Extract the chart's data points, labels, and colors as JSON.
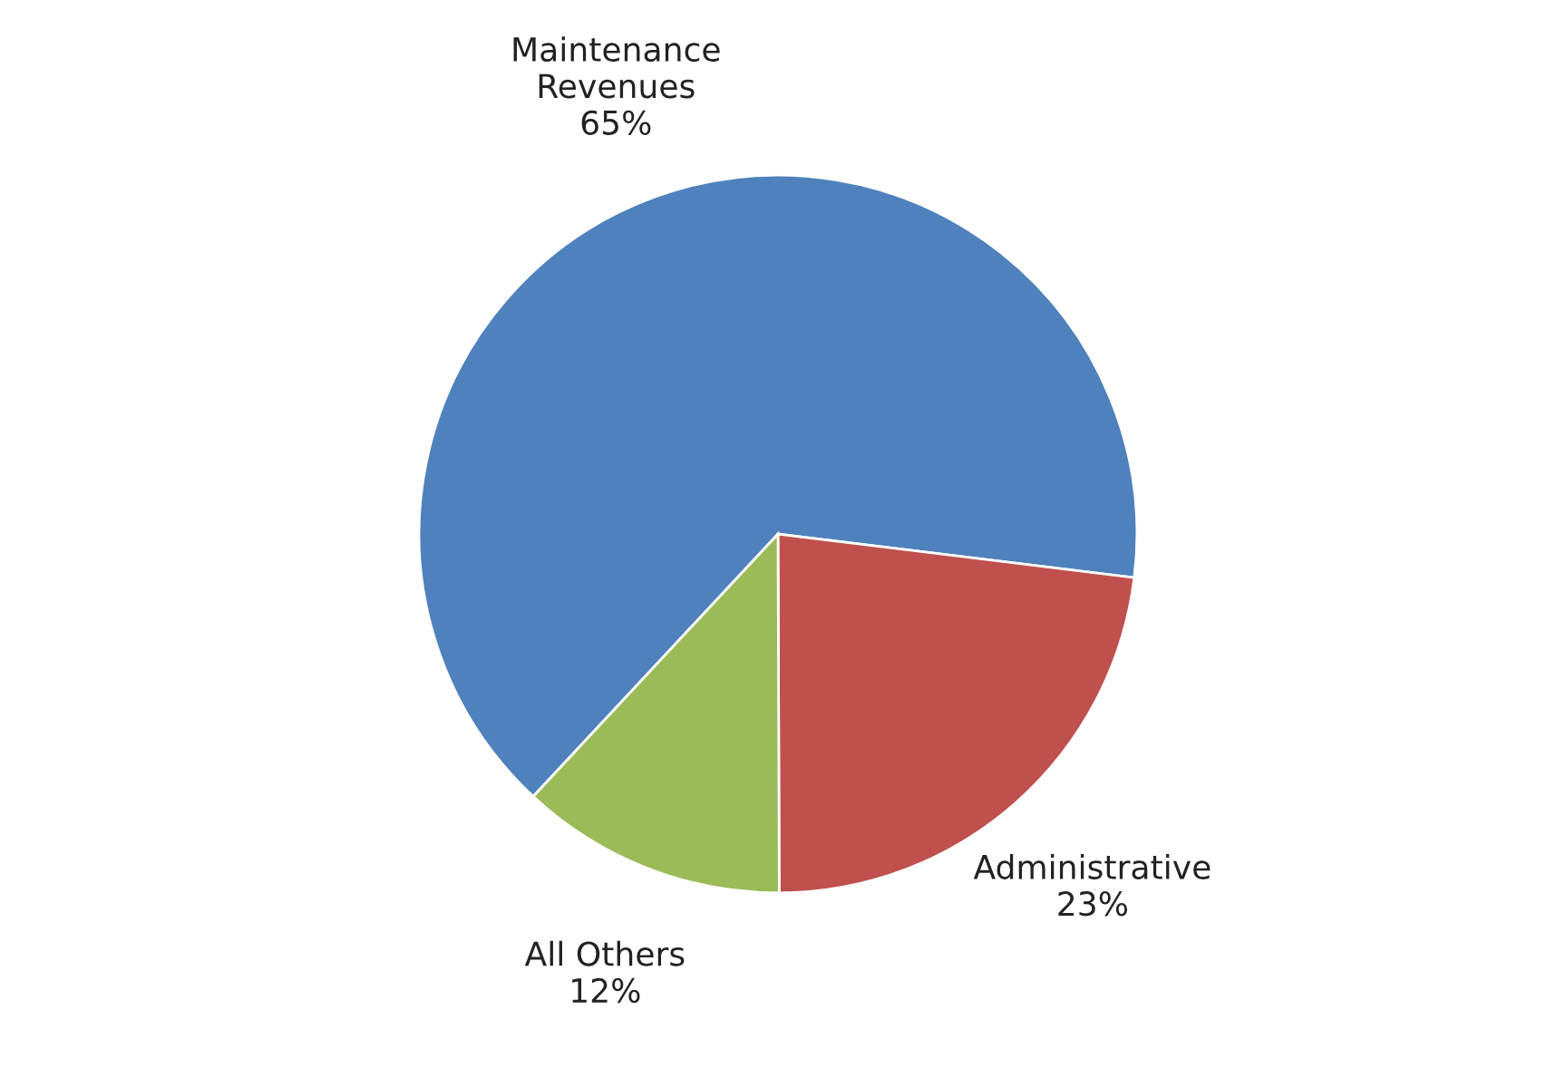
{
  "chart_data": {
    "type": "pie",
    "categories": [
      "Maintenance\nRevenues",
      "Administrative",
      "All Others"
    ],
    "values": [
      65,
      23,
      12
    ],
    "value_labels": [
      "65%",
      "23%",
      "12%"
    ],
    "colors": [
      "#4f81bd",
      "#c0504d",
      "#9bbb59"
    ]
  }
}
